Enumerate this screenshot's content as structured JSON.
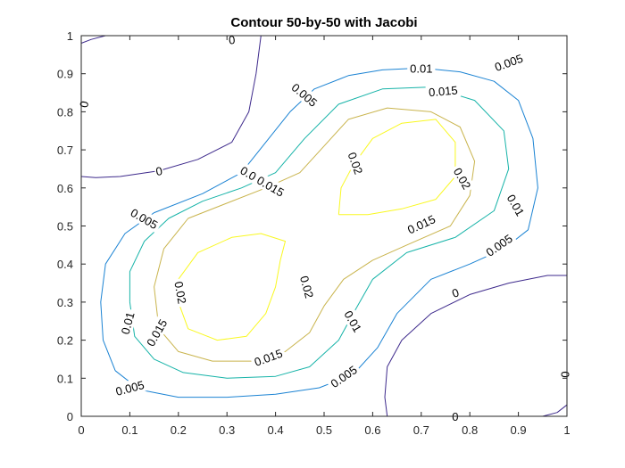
{
  "chart_data": {
    "type": "contour",
    "title": "Contour 50-by-50 with Jacobi",
    "xlabel": "",
    "ylabel": "",
    "xlim": [
      0,
      1
    ],
    "ylim": [
      0,
      1
    ],
    "x_ticks": [
      "0",
      "0.1",
      "0.2",
      "0.3",
      "0.4",
      "0.5",
      "0.6",
      "0.7",
      "0.8",
      "0.9",
      "1"
    ],
    "y_ticks": [
      "0",
      "0.1",
      "0.2",
      "0.3",
      "0.4",
      "0.5",
      "0.6",
      "0.7",
      "0.8",
      "0.9",
      "1"
    ],
    "grid": false,
    "levels": [
      {
        "value": 0,
        "label": "0",
        "color": "#3e2a8c",
        "paths": [
          [
            [
              0.0,
              0.63
            ],
            [
              0.03,
              0.627
            ],
            [
              0.08,
              0.63
            ],
            [
              0.16,
              0.645
            ],
            [
              0.24,
              0.675
            ],
            [
              0.31,
              0.72
            ],
            [
              0.345,
              0.8
            ],
            [
              0.36,
              0.9
            ],
            [
              0.37,
              1.0
            ]
          ],
          [
            [
              0.0,
              0.63
            ],
            [
              0.0,
              0.98
            ],
            [
              0.02,
              0.99
            ],
            [
              0.05,
              1.0
            ],
            [
              0.37,
              1.0
            ]
          ],
          [
            [
              0.63,
              0.0
            ],
            [
              0.625,
              0.05
            ],
            [
              0.63,
              0.13
            ],
            [
              0.66,
              0.2
            ],
            [
              0.72,
              0.27
            ],
            [
              0.8,
              0.32
            ],
            [
              0.88,
              0.35
            ],
            [
              0.96,
              0.37
            ],
            [
              1.0,
              0.37
            ]
          ],
          [
            [
              0.63,
              0.0
            ],
            [
              0.95,
              0.0
            ],
            [
              0.98,
              0.01
            ],
            [
              1.0,
              0.03
            ],
            [
              1.0,
              0.37
            ]
          ]
        ]
      },
      {
        "value": 0.005,
        "label": "0.005",
        "color": "#1b83d3",
        "paths": [
          [
            [
              0.07,
              0.12
            ],
            [
              0.045,
              0.2
            ],
            [
              0.04,
              0.3
            ],
            [
              0.05,
              0.4
            ],
            [
              0.09,
              0.48
            ],
            [
              0.15,
              0.535
            ],
            [
              0.25,
              0.585
            ],
            [
              0.33,
              0.64
            ],
            [
              0.38,
              0.72
            ],
            [
              0.43,
              0.8
            ],
            [
              0.48,
              0.86
            ],
            [
              0.55,
              0.895
            ],
            [
              0.62,
              0.91
            ],
            [
              0.7,
              0.915
            ],
            [
              0.78,
              0.905
            ],
            [
              0.85,
              0.88
            ],
            [
              0.9,
              0.83
            ],
            [
              0.93,
              0.73
            ],
            [
              0.94,
              0.6
            ],
            [
              0.92,
              0.49
            ],
            [
              0.87,
              0.44
            ],
            [
              0.8,
              0.4
            ],
            [
              0.72,
              0.36
            ],
            [
              0.65,
              0.27
            ],
            [
              0.61,
              0.18
            ],
            [
              0.56,
              0.11
            ],
            [
              0.49,
              0.075
            ],
            [
              0.4,
              0.058
            ],
            [
              0.3,
              0.05
            ],
            [
              0.2,
              0.05
            ],
            [
              0.12,
              0.07
            ],
            [
              0.07,
              0.12
            ]
          ]
        ]
      },
      {
        "value": 0.01,
        "label": "0.01",
        "color": "#16b3a8",
        "paths": [
          [
            [
              0.1,
              0.3
            ],
            [
              0.11,
              0.21
            ],
            [
              0.15,
              0.15
            ],
            [
              0.21,
              0.115
            ],
            [
              0.3,
              0.1
            ],
            [
              0.4,
              0.105
            ],
            [
              0.47,
              0.13
            ],
            [
              0.53,
              0.2
            ],
            [
              0.56,
              0.27
            ],
            [
              0.6,
              0.36
            ],
            [
              0.67,
              0.43
            ],
            [
              0.77,
              0.47
            ],
            [
              0.85,
              0.54
            ],
            [
              0.88,
              0.65
            ],
            [
              0.87,
              0.75
            ],
            [
              0.81,
              0.83
            ],
            [
              0.72,
              0.865
            ],
            [
              0.62,
              0.86
            ],
            [
              0.53,
              0.82
            ],
            [
              0.46,
              0.73
            ],
            [
              0.4,
              0.64
            ],
            [
              0.33,
              0.6
            ],
            [
              0.25,
              0.565
            ],
            [
              0.18,
              0.52
            ],
            [
              0.13,
              0.46
            ],
            [
              0.1,
              0.38
            ],
            [
              0.1,
              0.3
            ]
          ]
        ]
      },
      {
        "value": 0.015,
        "label": "0.015",
        "color": "#c9b44d",
        "paths": [
          [
            [
              0.16,
              0.23
            ],
            [
              0.2,
              0.17
            ],
            [
              0.27,
              0.145
            ],
            [
              0.35,
              0.145
            ],
            [
              0.42,
              0.17
            ],
            [
              0.47,
              0.22
            ],
            [
              0.5,
              0.29
            ],
            [
              0.54,
              0.36
            ],
            [
              0.6,
              0.41
            ],
            [
              0.67,
              0.45
            ],
            [
              0.76,
              0.5
            ],
            [
              0.8,
              0.58
            ],
            [
              0.81,
              0.67
            ],
            [
              0.78,
              0.76
            ],
            [
              0.72,
              0.8
            ],
            [
              0.63,
              0.81
            ],
            [
              0.55,
              0.78
            ],
            [
              0.5,
              0.71
            ],
            [
              0.45,
              0.64
            ],
            [
              0.38,
              0.6
            ],
            [
              0.3,
              0.56
            ],
            [
              0.22,
              0.52
            ],
            [
              0.17,
              0.44
            ],
            [
              0.15,
              0.34
            ],
            [
              0.16,
              0.23
            ]
          ]
        ]
      },
      {
        "value": 0.02,
        "label": "0.02",
        "color": "#f9f820",
        "paths": [
          [
            [
              0.2,
              0.3
            ],
            [
              0.22,
              0.23
            ],
            [
              0.28,
              0.2
            ],
            [
              0.34,
              0.21
            ],
            [
              0.38,
              0.27
            ],
            [
              0.4,
              0.34
            ],
            [
              0.41,
              0.41
            ],
            [
              0.42,
              0.46
            ],
            [
              0.37,
              0.48
            ],
            [
              0.31,
              0.47
            ],
            [
              0.24,
              0.43
            ],
            [
              0.2,
              0.36
            ],
            [
              0.2,
              0.3
            ]
          ],
          [
            [
              0.53,
              0.53
            ],
            [
              0.535,
              0.6
            ],
            [
              0.56,
              0.66
            ],
            [
              0.6,
              0.73
            ],
            [
              0.66,
              0.77
            ],
            [
              0.73,
              0.78
            ],
            [
              0.77,
              0.72
            ],
            [
              0.77,
              0.63
            ],
            [
              0.73,
              0.57
            ],
            [
              0.66,
              0.545
            ],
            [
              0.59,
              0.53
            ],
            [
              0.53,
              0.53
            ]
          ]
        ]
      }
    ],
    "contour_labels": [
      {
        "text": "0",
        "x": 0.31,
        "y": 0.99,
        "angle": 5
      },
      {
        "text": "0",
        "x": 0.005,
        "y": 0.82,
        "angle": 80
      },
      {
        "text": "0",
        "x": 0.16,
        "y": 0.645,
        "angle": 10
      },
      {
        "text": "0",
        "x": 0.77,
        "y": 0.325,
        "angle": 20
      },
      {
        "text": "0",
        "x": 0.995,
        "y": 0.11,
        "angle": 90
      },
      {
        "text": "0",
        "x": 0.77,
        "y": 0.0,
        "angle": 0
      },
      {
        "text": "0.005",
        "x": 0.46,
        "y": 0.845,
        "angle": -40
      },
      {
        "text": "0.005",
        "x": 0.88,
        "y": 0.93,
        "angle": 20
      },
      {
        "text": "0.005",
        "x": 0.13,
        "y": 0.52,
        "angle": -30
      },
      {
        "text": "0.005",
        "x": 0.86,
        "y": 0.45,
        "angle": 35
      },
      {
        "text": "0.005",
        "x": 0.54,
        "y": 0.105,
        "angle": 35
      },
      {
        "text": "0.005",
        "x": 0.1,
        "y": 0.075,
        "angle": 15
      },
      {
        "text": "0.01",
        "x": 0.7,
        "y": 0.915,
        "angle": 0
      },
      {
        "text": "0.01",
        "x": 0.35,
        "y": 0.635,
        "angle": -30
      },
      {
        "text": "0.01",
        "x": 0.895,
        "y": 0.555,
        "angle": -60
      },
      {
        "text": "0.01",
        "x": 0.56,
        "y": 0.25,
        "angle": -60
      },
      {
        "text": "0.01",
        "x": 0.095,
        "y": 0.245,
        "angle": 75
      },
      {
        "text": "0.015",
        "x": 0.745,
        "y": 0.855,
        "angle": 5
      },
      {
        "text": "0.015",
        "x": 0.39,
        "y": 0.605,
        "angle": -30
      },
      {
        "text": "0.015",
        "x": 0.7,
        "y": 0.505,
        "angle": 25
      },
      {
        "text": "0.015",
        "x": 0.155,
        "y": 0.22,
        "angle": 60
      },
      {
        "text": "0.015",
        "x": 0.385,
        "y": 0.155,
        "angle": 20
      },
      {
        "text": "0.02",
        "x": 0.565,
        "y": 0.665,
        "angle": -70
      },
      {
        "text": "0.02",
        "x": 0.785,
        "y": 0.625,
        "angle": -60
      },
      {
        "text": "0.02",
        "x": 0.205,
        "y": 0.325,
        "angle": -80
      },
      {
        "text": "0.02",
        "x": 0.465,
        "y": 0.34,
        "angle": -75
      }
    ]
  }
}
